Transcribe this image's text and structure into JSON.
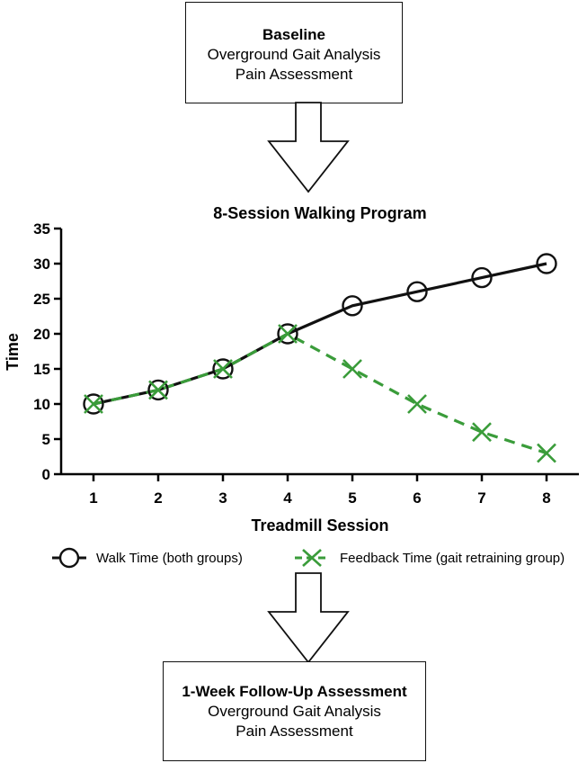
{
  "flow": {
    "baseline": {
      "title": "Baseline",
      "lines": [
        "Overground Gait Analysis",
        "Pain Assessment"
      ]
    },
    "followup": {
      "title": "1-Week Follow-Up Assessment",
      "lines": [
        "Overground Gait Analysis",
        "Pain Assessment"
      ]
    }
  },
  "colors": {
    "walk": "#111111",
    "feedback": "#3a9c3a"
  },
  "chart_data": {
    "type": "line",
    "title": "8-Session Walking Program",
    "xlabel": "Treadmill Session",
    "ylabel": "Time",
    "x": [
      1,
      2,
      3,
      4,
      5,
      6,
      7,
      8
    ],
    "xlim": [
      0.5,
      8.5
    ],
    "ylim": [
      0,
      35
    ],
    "yticks": [
      0,
      5,
      10,
      15,
      20,
      25,
      30,
      35
    ],
    "grid": false,
    "legend_position": "bottom",
    "series": [
      {
        "name": "Walk Time (both groups)",
        "values": [
          10,
          12,
          15,
          20,
          24,
          26,
          28,
          30
        ],
        "marker": "circle",
        "line": "solid",
        "color": "#111111"
      },
      {
        "name": "Feedback Time (gait retraining group)",
        "values": [
          10,
          12,
          15,
          20,
          15,
          10,
          6,
          3
        ],
        "marker": "x",
        "line": "dashed",
        "color": "#3a9c3a"
      }
    ]
  }
}
